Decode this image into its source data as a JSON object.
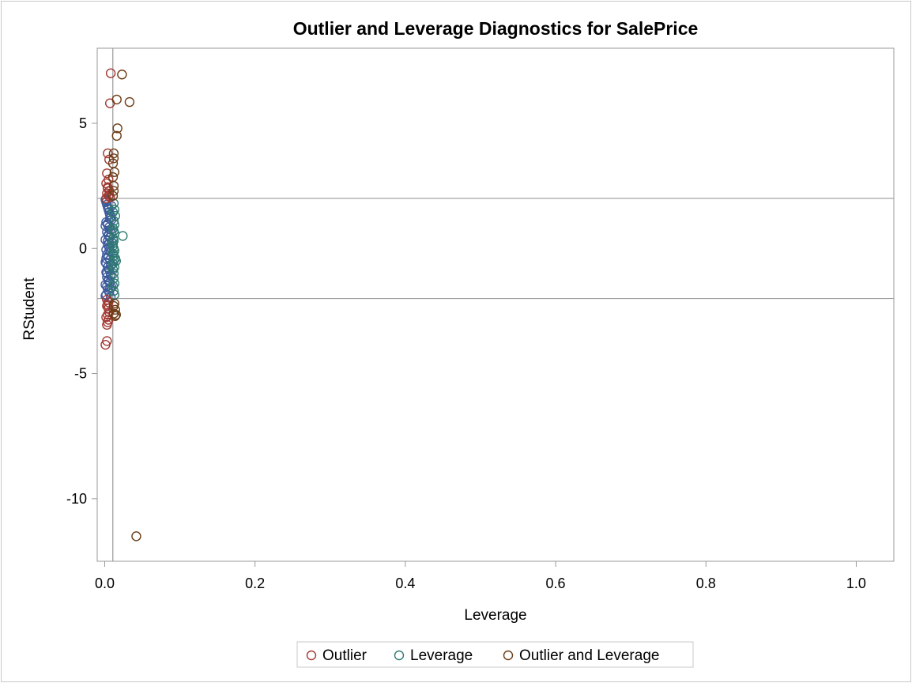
{
  "chart_data": {
    "type": "scatter",
    "title": "Outlier and Leverage Diagnostics for SalePrice",
    "xlabel": "Leverage",
    "ylabel": "RStudent",
    "xlim": [
      -0.01,
      1.05
    ],
    "ylim": [
      -12.5,
      8.0
    ],
    "xticks": [
      "0.0",
      "0.2",
      "0.4",
      "0.6",
      "0.8",
      "1.0"
    ],
    "xtick_values": [
      0,
      0.2,
      0.4,
      0.6,
      0.8,
      1.0
    ],
    "yticks": [
      "5",
      "0",
      "-5",
      "-10"
    ],
    "ytick_values": [
      5,
      0,
      -5,
      -10
    ],
    "reference_lines": {
      "y": [
        2,
        -2
      ],
      "x": [
        0.0108
      ]
    },
    "grid": false,
    "legend_position": "bottom",
    "colors": {
      "Outlier": "#a23a34",
      "Leverage": "#2f7a72",
      "Outlier and Leverage": "#6b3c16",
      "Normal": "#3d5a9c",
      "axis": "#999999"
    },
    "series": [
      {
        "name": "Outlier",
        "x": [
          0.008,
          0.007,
          0.004,
          0.006,
          0.003,
          0.005,
          0.002,
          0.004,
          0.006,
          0.003,
          0.005,
          0.007,
          0.004,
          0.002,
          0.006,
          0.003,
          0.005,
          0.004,
          0.003,
          0.005,
          0.006,
          0.004,
          0.002,
          0.005,
          0.004,
          0.003,
          0.001,
          0.003
        ],
        "y": [
          7.0,
          5.8,
          3.8,
          3.55,
          3.0,
          2.75,
          2.6,
          2.45,
          2.3,
          2.2,
          2.1,
          2.05,
          2.4,
          2.0,
          2.15,
          -2.05,
          -2.15,
          -2.25,
          -2.3,
          -2.4,
          -2.55,
          -2.65,
          -2.75,
          -2.85,
          -2.95,
          -3.05,
          -3.85,
          -3.7
        ]
      },
      {
        "name": "Leverage",
        "x": [
          0.012,
          0.013,
          0.011,
          0.014,
          0.012,
          0.013,
          0.024,
          0.011,
          0.012,
          0.013,
          0.011,
          0.012,
          0.011,
          0.012,
          0.013,
          0.011,
          0.012,
          0.014,
          0.012,
          0.011,
          0.015,
          0.013,
          0.011,
          0.012,
          0.012,
          0.013,
          0.011,
          0.012,
          0.013,
          0.011
        ],
        "y": [
          1.8,
          1.55,
          1.45,
          1.3,
          1.1,
          0.95,
          0.5,
          0.8,
          0.7,
          0.6,
          0.4,
          0.3,
          0.1,
          0.0,
          -0.1,
          -0.2,
          -0.3,
          -0.4,
          -0.5,
          -0.6,
          -0.5,
          -0.75,
          -0.85,
          -1.0,
          -1.2,
          -1.4,
          -1.5,
          -1.7,
          -1.85,
          0.2
        ]
      },
      {
        "name": "Outlier and Leverage",
        "x": [
          0.023,
          0.016,
          0.033,
          0.017,
          0.016,
          0.012,
          0.012,
          0.011,
          0.013,
          0.011,
          0.012,
          0.012,
          0.011,
          0.013,
          0.012,
          0.014,
          0.015,
          0.014,
          0.012,
          0.042
        ],
        "y": [
          6.95,
          5.95,
          5.85,
          4.8,
          4.5,
          3.8,
          3.6,
          3.4,
          3.05,
          2.85,
          2.5,
          2.3,
          2.1,
          -2.2,
          -2.3,
          -2.45,
          -2.65,
          -2.7,
          -2.6,
          -11.5
        ]
      },
      {
        "name": "Normal",
        "x": [
          0.001,
          0.002,
          0.003,
          0.004,
          0.005,
          0.006,
          0.007,
          0.008,
          0.009,
          0.002,
          0.004,
          0.006,
          0.008,
          0.003,
          0.005,
          0.007,
          0.001,
          0.009,
          0.004,
          0.006,
          0.002,
          0.008,
          0.003,
          0.005,
          0.007,
          0.001,
          0.009,
          0.004,
          0.006,
          0.002,
          0.008,
          0.003,
          0.005,
          0.007,
          0.001,
          0.009,
          0.004,
          0.006,
          0.002,
          0.008,
          0.003,
          0.005,
          0.007,
          0.001,
          0.009,
          0.004,
          0.006,
          0.002,
          0.008,
          0.003,
          0.005,
          0.007,
          0.001,
          0.009,
          0.004,
          0.006,
          0.002,
          0.008,
          0.003,
          0.005
        ],
        "y": [
          1.95,
          1.85,
          1.75,
          1.65,
          1.55,
          1.45,
          1.35,
          1.25,
          1.15,
          1.05,
          0.95,
          0.85,
          0.75,
          0.65,
          0.55,
          0.45,
          0.35,
          0.25,
          0.15,
          0.05,
          -0.05,
          -0.15,
          -0.25,
          -0.35,
          -0.45,
          -0.55,
          -0.65,
          -0.75,
          -0.85,
          -0.95,
          -1.05,
          -1.15,
          -1.25,
          -1.35,
          -1.45,
          -1.55,
          -1.65,
          -1.75,
          -1.85,
          -1.95,
          1.9,
          1.6,
          1.2,
          0.9,
          0.6,
          0.3,
          -0.1,
          -0.4,
          -0.7,
          -1.0,
          -1.3,
          -1.6,
          -1.9,
          1.7,
          1.0,
          0.2,
          -0.6,
          -1.1,
          -1.5,
          0.5
        ]
      }
    ],
    "legend": [
      {
        "label": "Outlier",
        "series": "Outlier"
      },
      {
        "label": "Leverage",
        "series": "Leverage"
      },
      {
        "label": "Outlier and Leverage",
        "series": "Outlier and Leverage"
      }
    ]
  }
}
